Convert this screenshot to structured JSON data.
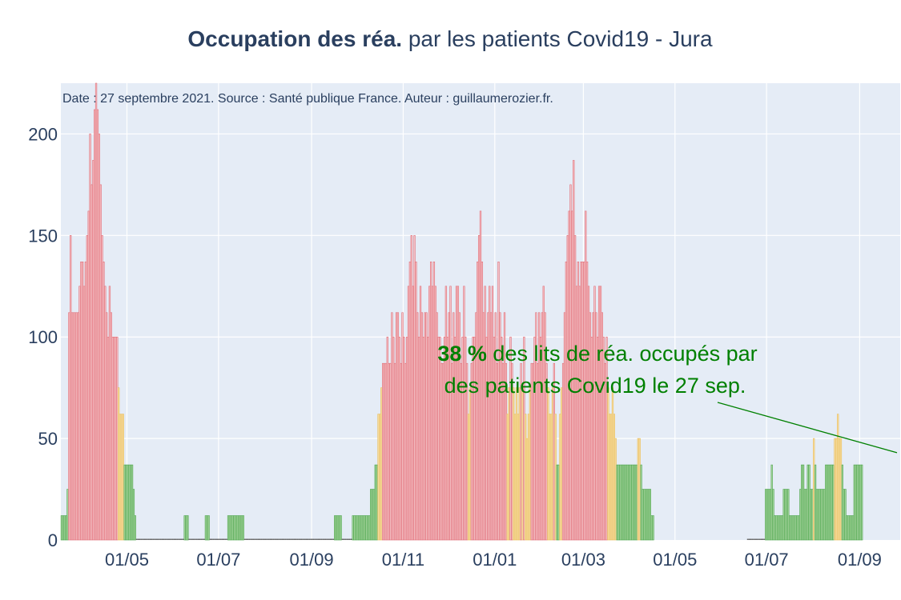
{
  "chart_data": {
    "type": "bar",
    "title_bold": "Occupation des réa.",
    "title_rest": " par les patients Covid19 - Jura",
    "note": "Date : 27 septembre 2021. Source : Santé publique France. Auteur : guillaumerozier.fr.",
    "ylabel": "",
    "xlabel": "",
    "ylim": [
      0,
      225
    ],
    "yticks": [
      0,
      50,
      100,
      150,
      200
    ],
    "x_range": [
      "2020-03-18",
      "2021-09-28"
    ],
    "x_ticks": [
      {
        "date": "2020-05-01",
        "label": "01/05"
      },
      {
        "date": "2020-07-01",
        "label": "01/07"
      },
      {
        "date": "2020-09-01",
        "label": "01/09"
      },
      {
        "date": "2020-11-01",
        "label": "01/11"
      },
      {
        "date": "2021-01-01",
        "label": "01/01"
      },
      {
        "date": "2021-03-01",
        "label": "01/03"
      },
      {
        "date": "2021-05-01",
        "label": "01/05"
      },
      {
        "date": "2021-07-01",
        "label": "01/07"
      },
      {
        "date": "2021-09-01",
        "label": "01/09"
      }
    ],
    "grid": true,
    "legend": "none",
    "color_thresholds": [
      {
        "below": 40,
        "color": "green"
      },
      {
        "below": 80,
        "color": "orange"
      },
      {
        "from": 80,
        "color": "red"
      }
    ],
    "colors": {
      "green_fill": "#a9d6a0",
      "green_line": "#4ea64e",
      "orange_fill": "#f7dfa6",
      "orange_line": "#e9bd5c",
      "red_fill": "#f5c4c8",
      "red_line": "#e06d77",
      "plot_bg": "#e5ecf6",
      "grid": "#ffffff",
      "text": "#2a3f5f",
      "annotation": "#008000"
    },
    "series": [
      {
        "segments": [
          {
            "start": "2020-03-18",
            "values": [
              12,
              12,
              12,
              12,
              25,
              112,
              150,
              112,
              112,
              112,
              112,
              112,
              125,
              137,
              137,
              125,
              137,
              150,
              162,
              200,
              175,
              187,
              212,
              225,
              212,
              200,
              175,
              150,
              137,
              125,
              112,
              100,
              125,
              112,
              100,
              100,
              100,
              100,
              75,
              62,
              62,
              62,
              37,
              37,
              37,
              37,
              37,
              37,
              25,
              12
            ]
          },
          {
            "start": "2020-05-07",
            "value": 0,
            "end": "2020-06-07"
          },
          {
            "start": "2020-06-08",
            "values": [
              12,
              12,
              12
            ]
          },
          {
            "start": "2020-06-11",
            "value": 0,
            "end": "2020-06-21"
          },
          {
            "start": "2020-06-22",
            "values": [
              12,
              12,
              12
            ]
          },
          {
            "start": "2020-06-25",
            "value": 0,
            "end": "2020-07-06"
          },
          {
            "start": "2020-07-07",
            "values": [
              12,
              12,
              12,
              12,
              12,
              12,
              12,
              12,
              12,
              12,
              12
            ]
          },
          {
            "start": "2020-07-18",
            "value": 0,
            "end": "2020-09-15"
          },
          {
            "start": "2020-09-16",
            "values": [
              12,
              12,
              12,
              12,
              12
            ]
          },
          {
            "start": "2020-09-21",
            "value": 0,
            "end": "2020-09-27"
          },
          {
            "start": "2020-09-28",
            "values": [
              12,
              12,
              12,
              12,
              12,
              12,
              12,
              12,
              12,
              12,
              12,
              12,
              25,
              25,
              25,
              37,
              37,
              62,
              62,
              75,
              87,
              87,
              87,
              100,
              87,
              87,
              112,
              100,
              87,
              112,
              112,
              100,
              87,
              112,
              100,
              87,
              100,
              125,
              137,
              150,
              125,
              150,
              137,
              112,
              100,
              125,
              112,
              100,
              112,
              112,
              100,
              125,
              137,
              125,
              137,
              125,
              112,
              100,
              100,
              87,
              87,
              100,
              125,
              100,
              112,
              125,
              87,
              112,
              100,
              125,
              125,
              112,
              87,
              100,
              125,
              100,
              87,
              62,
              75,
              87,
              100,
              100,
              112,
              137,
              150,
              162,
              137,
              112,
              125,
              100,
              112,
              125,
              112,
              125,
              100,
              112,
              87,
              137,
              112,
              100,
              87,
              112,
              87,
              62,
              75,
              100,
              87,
              75,
              62,
              75,
              62,
              75,
              87,
              75,
              100,
              62,
              50,
              62,
              75,
              87,
              87,
              100,
              112,
              87,
              112,
              100,
              112,
              125,
              112,
              87,
              75,
              62,
              62,
              75,
              87,
              62,
              37,
              37,
              62,
              75,
              87,
              112,
              137,
              150,
              162,
              175,
              162,
              187,
              150,
              125,
              137,
              125,
              137,
              137,
              137,
              162,
              137,
              125,
              112,
              100,
              112,
              125,
              112,
              100,
              125,
              125,
              112,
              100,
              87,
              100,
              75,
              62,
              62,
              75,
              62,
              50,
              37,
              37,
              37,
              37,
              37,
              37,
              37,
              37,
              37,
              37,
              37,
              37,
              37,
              37,
              50,
              50,
              37,
              25,
              25,
              25,
              25,
              25,
              25,
              12,
              12
            ]
          },
          {
            "start": "2021-06-18",
            "value": 0,
            "end": "2021-06-29"
          },
          {
            "start": "2021-06-30",
            "values": [
              25,
              25,
              25,
              25,
              37,
              25,
              12,
              12,
              12,
              12,
              12,
              12,
              25,
              25,
              25,
              25,
              12,
              12,
              12,
              12,
              12,
              12,
              12,
              25,
              37,
              37,
              25,
              25,
              37,
              37,
              25,
              25,
              50,
              37,
              25,
              25,
              25,
              25,
              25,
              25,
              37,
              37,
              37,
              37,
              37,
              37,
              50,
              50,
              62,
              50,
              50,
              37,
              25,
              25,
              12,
              12,
              12,
              12,
              12,
              37,
              37,
              37,
              37,
              37,
              37
            ]
          }
        ]
      }
    ],
    "annotation": {
      "value_bold": "38  %",
      "line1_rest": " des lits de réa. occupés par",
      "line2": "des patients Covid19 le 27 sep.",
      "arrow_to_date": "2021-09-27",
      "arrow_to_value": 43
    }
  }
}
